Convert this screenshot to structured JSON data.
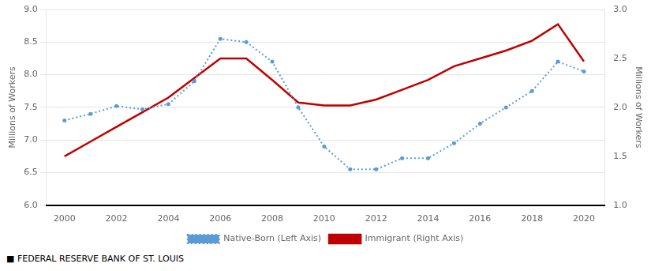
{
  "chart_data": {
    "type": "line",
    "x": [
      2000,
      2001,
      2002,
      2003,
      2004,
      2005,
      2006,
      2007,
      2008,
      2009,
      2010,
      2011,
      2012,
      2013,
      2014,
      2015,
      2016,
      2017,
      2018,
      2019,
      2020
    ],
    "series": [
      {
        "name": "Native-Born (Left Axis)",
        "color": "#5b9bd5",
        "line_style": "dotted",
        "marker": "o",
        "axis": "y",
        "values": [
          7.3,
          7.4,
          7.52,
          7.47,
          7.55,
          7.9,
          8.55,
          8.5,
          8.2,
          7.5,
          6.9,
          6.55,
          6.55,
          6.72,
          6.72,
          6.95,
          7.25,
          7.5,
          7.75,
          8.2,
          8.05
        ]
      },
      {
        "name": "Immigrant (Right Axis)",
        "color": "#c00000",
        "line_style": "solid",
        "marker": "none",
        "axis": "y2",
        "values": [
          1.5,
          1.65,
          1.8,
          1.95,
          2.1,
          2.3,
          2.5,
          2.5,
          2.28,
          2.05,
          2.02,
          2.02,
          2.08,
          2.18,
          2.28,
          2.42,
          2.5,
          2.58,
          2.68,
          2.85,
          2.47
        ]
      }
    ],
    "ylabel": "Millions of Workers",
    "y2label": "Millions of Workers",
    "xlim": [
      1999.3,
      2020.8
    ],
    "xticks": [
      2000,
      2002,
      2004,
      2006,
      2008,
      2010,
      2012,
      2014,
      2016,
      2018,
      2020
    ],
    "ylim": [
      6.0,
      9.0
    ],
    "yticks": [
      {
        "value": 6.0,
        "label": "6.0"
      },
      {
        "value": 6.5,
        "label": "6.5"
      },
      {
        "value": 7.0,
        "label": "7.0"
      },
      {
        "value": 7.5,
        "label": "7.5"
      },
      {
        "value": 8.0,
        "label": "8.0"
      },
      {
        "value": 8.5,
        "label": "8.5"
      },
      {
        "value": 9.0,
        "label": "9.0"
      }
    ],
    "y2lim": [
      1.0,
      3.0
    ],
    "y2ticks": [
      {
        "value": 1.0,
        "label": "1.0"
      },
      {
        "value": 1.5,
        "label": "1.5"
      },
      {
        "value": 2.0,
        "label": "2.0"
      },
      {
        "value": 2.5,
        "label": "2.5"
      },
      {
        "value": 3.0,
        "label": "3.0"
      }
    ],
    "grid": true,
    "legend": "bottom",
    "annotations": [
      "■  FEDERAL RESERVE BANK OF ST. LOUIS"
    ]
  }
}
